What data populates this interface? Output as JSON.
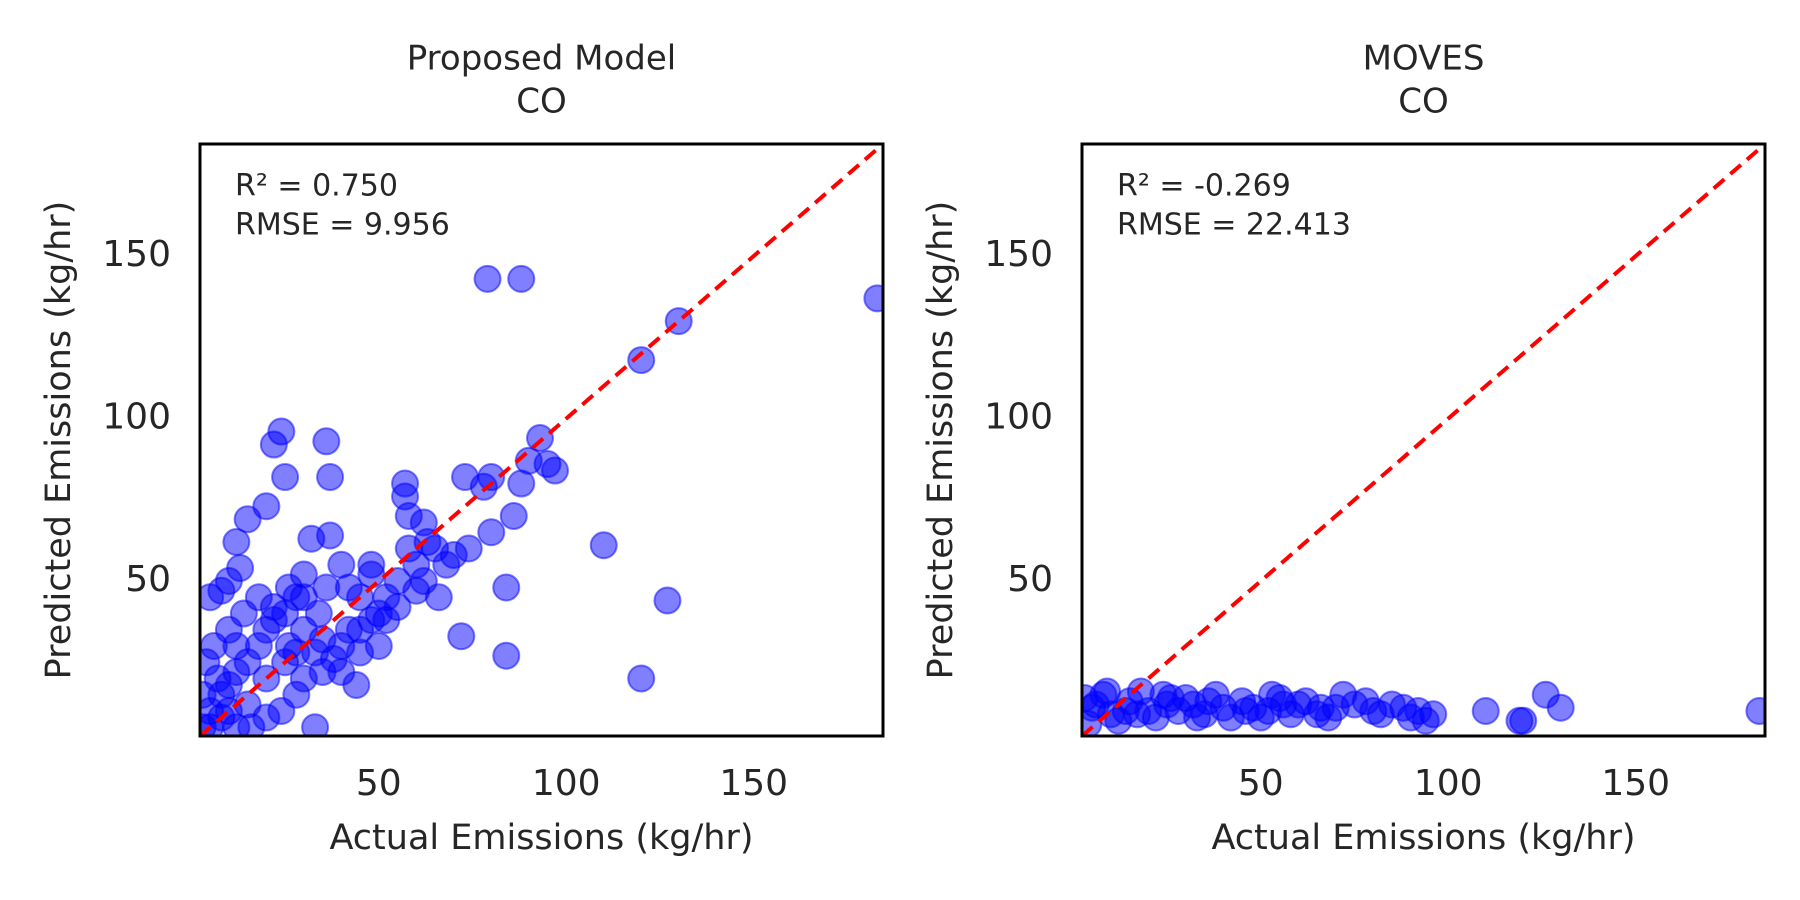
{
  "chart_data": [
    {
      "type": "scatter",
      "title": "Proposed Model",
      "subtitle": "CO",
      "x_label": "Actual Emissions (kg/hr)",
      "y_label": "Predicted Emissions (kg/hr)",
      "annotations": [
        "R² = 0.750",
        "RMSE = 9.956"
      ],
      "xlim": [
        2.3,
        184.5
      ],
      "ylim": [
        2.3,
        184.5
      ],
      "xticks": [
        50,
        100,
        150
      ],
      "yticks": [
        50,
        100,
        150
      ],
      "identity_line": {
        "color": "#ff0000",
        "dashed": true
      },
      "series": [
        {
          "color": "#0000ff",
          "x": [
            183,
            130,
            120,
            79,
            88,
            93,
            90,
            97,
            95,
            88,
            86,
            78,
            80,
            73,
            80,
            74,
            110,
            127,
            120,
            84,
            84,
            72,
            57,
            57,
            58,
            62,
            65,
            68,
            60,
            55,
            52,
            50,
            48,
            45,
            42,
            40,
            38,
            35,
            36,
            24,
            22,
            37,
            25,
            20,
            15,
            12,
            13,
            10,
            5,
            8,
            32,
            37,
            30,
            28,
            25,
            22,
            20,
            18,
            15,
            12,
            10,
            8,
            5,
            3,
            4,
            6,
            10,
            14,
            18,
            22,
            26,
            30,
            34,
            44,
            40,
            30,
            28,
            24,
            20,
            16,
            33,
            45,
            50,
            55,
            62,
            70,
            66,
            60,
            63,
            48,
            42,
            36,
            30,
            26,
            12,
            7,
            15,
            25,
            35,
            45,
            52,
            58,
            40,
            48,
            33,
            28,
            20,
            10,
            5,
            3,
            8,
            12
          ],
          "y": [
            137,
            130,
            118,
            143,
            143,
            94,
            87,
            84,
            86,
            80,
            70,
            79,
            82,
            82,
            65,
            60,
            61,
            44,
            20,
            27,
            48,
            33,
            80,
            76,
            70,
            68,
            60,
            55,
            55,
            50,
            45,
            40,
            38,
            45,
            35,
            30,
            26,
            22,
            93,
            96,
            92,
            82,
            82,
            73,
            69,
            62,
            54,
            50,
            45,
            47,
            63,
            64,
            52,
            45,
            40,
            38,
            35,
            30,
            25,
            22,
            18,
            15,
            10,
            5,
            25,
            30,
            35,
            40,
            45,
            42,
            30,
            35,
            40,
            18,
            22,
            20,
            15,
            10,
            8,
            5,
            5,
            28,
            30,
            42,
            50,
            58,
            45,
            47,
            62,
            52,
            48,
            48,
            45,
            48,
            30,
            20,
            12,
            25,
            32,
            35,
            38,
            60,
            55,
            55,
            28,
            28,
            20,
            10,
            5,
            15,
            8,
            5
          ]
        }
      ]
    },
    {
      "type": "scatter",
      "title": "MOVES",
      "subtitle": "CO",
      "x_label": "Actual Emissions (kg/hr)",
      "y_label": "Predicted Emissions (kg/hr)",
      "annotations": [
        "R² = -0.269",
        "RMSE = 22.413"
      ],
      "xlim": [
        2.3,
        184.5
      ],
      "ylim": [
        2.3,
        184.5
      ],
      "xticks": [
        50,
        100,
        150
      ],
      "yticks": [
        50,
        100,
        150
      ],
      "identity_line": {
        "color": "#ff0000",
        "dashed": true
      },
      "series": [
        {
          "color": "#0000ff",
          "x": [
            183,
            130,
            126,
            120,
            119,
            110,
            96,
            92,
            90,
            85,
            80,
            78,
            72,
            70,
            65,
            60,
            55,
            52,
            50,
            45,
            40,
            35,
            30,
            25,
            20,
            15,
            10,
            5,
            3,
            4,
            8,
            12,
            18,
            22,
            28,
            32,
            38,
            42,
            48,
            53,
            58,
            62,
            68,
            75,
            82,
            88,
            94,
            6,
            14,
            26,
            36,
            46,
            56,
            66,
            9,
            17,
            24,
            33
          ],
          "y": [
            10,
            11,
            15,
            7,
            7,
            10,
            9,
            10,
            8,
            12,
            10,
            13,
            15,
            11,
            9,
            12,
            14,
            10,
            8,
            13,
            11,
            9,
            14,
            12,
            10,
            13,
            9,
            11,
            14,
            6,
            15,
            7,
            16,
            8,
            10,
            12,
            15,
            8,
            11,
            15,
            9,
            13,
            8,
            12,
            9,
            11,
            7,
            12,
            10,
            14,
            13,
            10,
            12,
            11,
            16,
            9,
            15,
            8
          ]
        }
      ]
    }
  ]
}
